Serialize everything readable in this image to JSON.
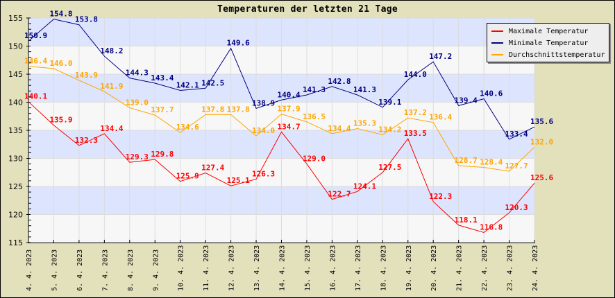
{
  "chart_data": {
    "type": "line",
    "title": "Temperaturen der letzten 21 Tage",
    "xlabel": "",
    "ylabel": "",
    "ylim": [
      115,
      155
    ],
    "yticks": [
      115,
      120,
      125,
      130,
      135,
      140,
      145,
      150,
      155
    ],
    "grid": true,
    "legend_position": "top-right",
    "categories": [
      "4. 4. 2023",
      "5. 4. 2023",
      "6. 4. 2023",
      "7. 4. 2023",
      "8. 4. 2023",
      "9. 4. 2023",
      "10. 4. 2023",
      "11. 4. 2023",
      "12. 4. 2023",
      "13. 4. 2023",
      "14. 4. 2023",
      "15. 4. 2023",
      "16. 4. 2023",
      "17. 4. 2023",
      "18. 4. 2023",
      "19. 4. 2023",
      "20. 4. 2023",
      "21. 4. 2023",
      "22. 4. 2023",
      "23. 4. 2023",
      "24. 4. 2023"
    ],
    "series": [
      {
        "name": "Maximale Temperatur",
        "color": "#ff0000",
        "values": [
          140.1,
          135.9,
          132.3,
          134.4,
          129.3,
          129.8,
          125.9,
          127.4,
          125.1,
          126.3,
          134.7,
          129.0,
          122.7,
          124.1,
          127.5,
          133.5,
          122.3,
          118.1,
          116.8,
          120.3,
          125.6
        ]
      },
      {
        "name": "Minimale Temperatur",
        "color": "#000080",
        "values": [
          150.9,
          154.8,
          153.8,
          148.2,
          144.3,
          143.4,
          142.1,
          142.5,
          149.6,
          138.9,
          140.4,
          141.3,
          142.8,
          141.3,
          139.1,
          144.0,
          147.2,
          139.4,
          140.6,
          133.4,
          135.6
        ]
      },
      {
        "name": "Durchschnittstemperatur",
        "color": "#ffa500",
        "values": [
          146.4,
          146.0,
          143.9,
          141.9,
          139.0,
          137.7,
          134.6,
          137.8,
          137.8,
          134.0,
          137.9,
          136.5,
          134.4,
          135.3,
          134.2,
          137.2,
          136.4,
          128.7,
          128.4,
          127.7,
          132.0
        ]
      }
    ]
  },
  "colors": {
    "background": "#e3e0bc",
    "band_blue": "#dde4fd",
    "band_white": "#f7f7f7",
    "grid": "#dcdcdc",
    "legend_bg": "#eeeeee"
  }
}
